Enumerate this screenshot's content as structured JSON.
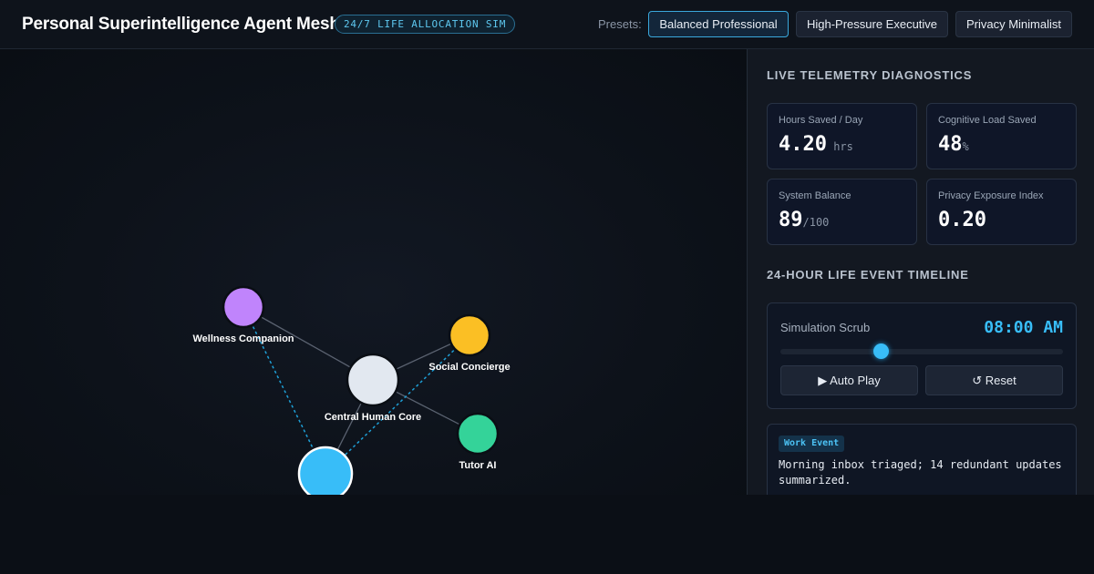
{
  "header": {
    "title": "Personal Superintelligence Agent Mesh",
    "badge": "24/7 LIFE ALLOCATION SIM",
    "presets_label": "Presets:",
    "presets": [
      {
        "label": "Balanced Professional",
        "active": true
      },
      {
        "label": "High-Pressure Executive",
        "active": false
      },
      {
        "label": "Privacy Minimalist",
        "active": false
      }
    ]
  },
  "mesh": {
    "nodes": [
      {
        "id": "wellness",
        "label": "Wellness Companion",
        "color": "#c084fc"
      },
      {
        "id": "social",
        "label": "Social Concierge",
        "color": "#fbbf24"
      },
      {
        "id": "core",
        "label": "Central Human Core",
        "color": "#e2e8f0"
      },
      {
        "id": "tutor",
        "label": "Tutor AI",
        "color": "#34d399"
      },
      {
        "id": "work",
        "label": "",
        "color": "#38bdf8"
      }
    ],
    "links": [
      {
        "from": "wellness",
        "to": "core",
        "style": "solid"
      },
      {
        "from": "social",
        "to": "core",
        "style": "solid"
      },
      {
        "from": "core",
        "to": "tutor",
        "style": "solid"
      },
      {
        "from": "core",
        "to": "work",
        "style": "solid"
      },
      {
        "from": "wellness",
        "to": "work",
        "style": "dotted"
      },
      {
        "from": "social",
        "to": "work",
        "style": "dotted"
      }
    ],
    "link_colors": {
      "solid": "#5a6270",
      "dotted": "#1e9fd6"
    }
  },
  "telemetry": {
    "title": "LIVE TELEMETRY DIAGNOSTICS",
    "metrics": [
      {
        "label": "Hours Saved / Day",
        "value": "4.20",
        "unit": " hrs"
      },
      {
        "label": "Cognitive Load Saved",
        "value": "48",
        "unit": "%"
      },
      {
        "label": "System Balance",
        "value": "89",
        "unit": "/100"
      },
      {
        "label": "Privacy Exposure Index",
        "value": "0.20",
        "unit": ""
      }
    ]
  },
  "timeline": {
    "title": "24-HOUR LIFE EVENT TIMELINE",
    "scrub_label": "Simulation Scrub",
    "time": "08:00 AM",
    "progress": 0.355,
    "autoplay_label": "▶  Auto Play",
    "reset_label": "↺ Reset"
  },
  "event": {
    "tag": "Work Event",
    "text": "Morning inbox triaged; 14 redundant updates summarized."
  }
}
